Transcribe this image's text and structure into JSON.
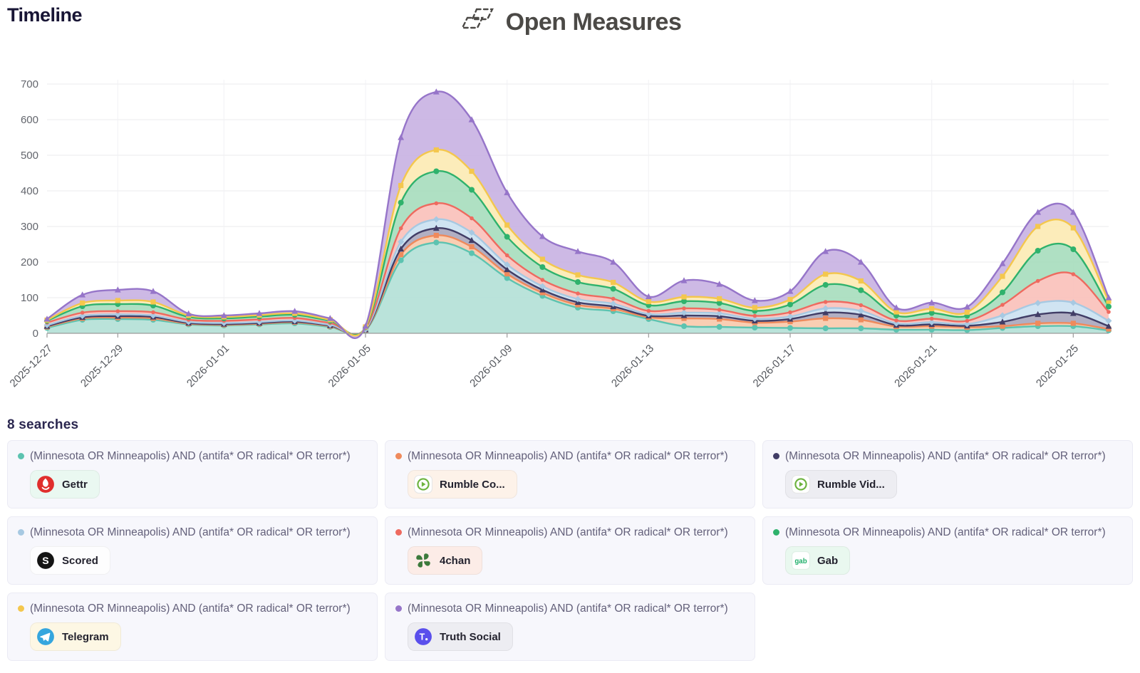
{
  "header": {
    "title": "Timeline",
    "brand": "Open Measures"
  },
  "searches": {
    "heading": "8 searches",
    "query_text": "(Minnesota OR Minneapolis) AND (antifa* OR radical* OR terror*)",
    "items": [
      {
        "platform": "Gettr",
        "query": "(Minnesota OR Minneapolis) AND (antifa* OR radical* OR terror*)",
        "dot_color": "#5cc3b0",
        "badge_bg": "#eaf8f1",
        "icon": "gettr-icon"
      },
      {
        "platform": "Rumble Co...",
        "query": "(Minnesota OR Minneapolis) AND (antifa* OR radical* OR terror*)",
        "dot_color": "#ef8a5c",
        "badge_bg": "#fdf2e9",
        "icon": "rumble-icon"
      },
      {
        "platform": "Rumble Vid...",
        "query": "(Minnesota OR Minneapolis) AND (antifa* OR radical* OR terror*)",
        "dot_color": "#413d66",
        "badge_bg": "#ededf2",
        "icon": "rumble-icon"
      },
      {
        "platform": "Scored",
        "query": "(Minnesota OR Minneapolis) AND (antifa* OR radical* OR terror*)",
        "dot_color": "#a7c9e2",
        "badge_bg": "#fdfdfe",
        "icon": "scored-icon"
      },
      {
        "platform": "4chan",
        "query": "(Minnesota OR Minneapolis) AND (antifa* OR radical* OR terror*)",
        "dot_color": "#ee6a5f",
        "badge_bg": "#fcece7",
        "icon": "4chan-icon"
      },
      {
        "platform": "Gab",
        "query": "(Minnesota OR Minneapolis) AND (antifa* OR radical* OR terror*)",
        "dot_color": "#2fb26c",
        "badge_bg": "#e9f8ef",
        "icon": "gab-icon"
      },
      {
        "platform": "Telegram",
        "query": "(Minnesota OR Minneapolis) AND (antifa* OR radical* OR terror*)",
        "dot_color": "#f4c74d",
        "badge_bg": "#fdf7e4",
        "icon": "telegram-icon"
      },
      {
        "platform": "Truth Social",
        "query": "(Minnesota OR Minneapolis) AND (antifa* OR radical* OR terror*)",
        "dot_color": "#9675c9",
        "badge_bg": "#ededf2",
        "icon": "truth-icon"
      }
    ]
  },
  "chart_data": {
    "type": "area",
    "stacked": true,
    "title": "Timeline",
    "xlabel": "",
    "ylabel": "",
    "ylim": [
      0,
      700
    ],
    "y_ticks": [
      0,
      100,
      200,
      300,
      400,
      500,
      600,
      700
    ],
    "grid": true,
    "legend_position": "bottom-cards",
    "x": [
      "2025-12-27",
      "2025-12-28",
      "2025-12-29",
      "2025-12-30",
      "2025-12-31",
      "2026-01-01",
      "2026-01-02",
      "2026-01-03",
      "2026-01-04",
      "2026-01-05",
      "2026-01-06",
      "2026-01-07",
      "2026-01-08",
      "2026-01-09",
      "2026-01-10",
      "2026-01-11",
      "2026-01-12",
      "2026-01-13",
      "2026-01-14",
      "2026-01-15",
      "2026-01-16",
      "2026-01-17",
      "2026-01-18",
      "2026-01-19",
      "2026-01-20",
      "2026-01-21",
      "2026-01-22",
      "2026-01-23",
      "2026-01-24",
      "2026-01-25",
      "2026-01-26"
    ],
    "x_tick_labels": [
      "2025-12-27",
      "2025-12-29",
      "2026-01-01",
      "2026-01-05",
      "2026-01-09",
      "2026-01-13",
      "2026-01-17",
      "2026-01-21",
      "2026-01-25"
    ],
    "x_tick_days": [
      0,
      2,
      5,
      9,
      13,
      17,
      21,
      25,
      29
    ],
    "series": [
      {
        "name": "Gettr",
        "marker": "circle",
        "line_color": "#5cc3b0",
        "fill_color": "#b2e0d6",
        "values": [
          15,
          38,
          40,
          38,
          25,
          22,
          25,
          28,
          18,
          8,
          205,
          255,
          225,
          155,
          105,
          72,
          62,
          40,
          20,
          18,
          16,
          15,
          14,
          14,
          10,
          10,
          9,
          15,
          20,
          20,
          8
        ]
      },
      {
        "name": "Rumble Co...",
        "marker": "square",
        "line_color": "#ef8a5c",
        "fill_color": "#f8c9ab",
        "values": [
          3,
          4,
          4,
          4,
          2,
          2,
          2,
          3,
          2,
          1,
          16,
          20,
          18,
          12,
          9,
          8,
          7,
          5,
          22,
          22,
          14,
          18,
          28,
          24,
          9,
          10,
          8,
          5,
          8,
          8,
          4
        ]
      },
      {
        "name": "Rumble Vid...",
        "marker": "triangle",
        "line_color": "#413d66",
        "fill_color": "#a9a6bd",
        "values": [
          2,
          3,
          4,
          4,
          2,
          2,
          2,
          2,
          2,
          1,
          16,
          20,
          18,
          12,
          8,
          7,
          6,
          4,
          8,
          8,
          5,
          7,
          16,
          14,
          4,
          5,
          4,
          12,
          25,
          28,
          8
        ]
      },
      {
        "name": "Scored",
        "marker": "diamond",
        "line_color": "#a7c9e2",
        "fill_color": "#cbe1f1",
        "values": [
          3,
          4,
          5,
          4,
          3,
          3,
          3,
          3,
          2,
          1,
          20,
          25,
          22,
          14,
          10,
          9,
          8,
          5,
          8,
          8,
          6,
          7,
          12,
          11,
          5,
          6,
          5,
          18,
          32,
          30,
          15
        ]
      },
      {
        "name": "4chan",
        "marker": "dot",
        "line_color": "#ee6a5f",
        "fill_color": "#f9c0b9",
        "values": [
          7,
          9,
          9,
          9,
          6,
          6,
          7,
          7,
          5,
          3,
          38,
          45,
          40,
          26,
          18,
          16,
          14,
          9,
          12,
          10,
          8,
          12,
          18,
          16,
          8,
          10,
          9,
          30,
          62,
          80,
          25
        ]
      },
      {
        "name": "Gab",
        "marker": "circle",
        "line_color": "#2fb26c",
        "fill_color": "#a6ddbd",
        "values": [
          5,
          18,
          20,
          19,
          8,
          7,
          8,
          9,
          6,
          3,
          72,
          90,
          80,
          52,
          36,
          32,
          28,
          16,
          20,
          19,
          14,
          22,
          48,
          42,
          14,
          16,
          14,
          35,
          85,
          70,
          15
        ]
      },
      {
        "name": "Telegram",
        "marker": "square",
        "line_color": "#f4c74d",
        "fill_color": "#fceab2",
        "values": [
          2,
          9,
          10,
          10,
          4,
          4,
          4,
          4,
          3,
          1,
          48,
          60,
          52,
          33,
          22,
          20,
          18,
          10,
          12,
          12,
          9,
          14,
          30,
          26,
          10,
          12,
          10,
          45,
          68,
          60,
          15
        ]
      },
      {
        "name": "Truth Social",
        "marker": "triangle",
        "line_color": "#9675c9",
        "fill_color": "#c8b1e2",
        "values": [
          3,
          23,
          30,
          30,
          5,
          4,
          5,
          6,
          4,
          2,
          135,
          163,
          145,
          91,
          64,
          66,
          57,
          14,
          46,
          41,
          20,
          23,
          64,
          53,
          12,
          17,
          15,
          36,
          40,
          44,
          10
        ]
      }
    ]
  }
}
